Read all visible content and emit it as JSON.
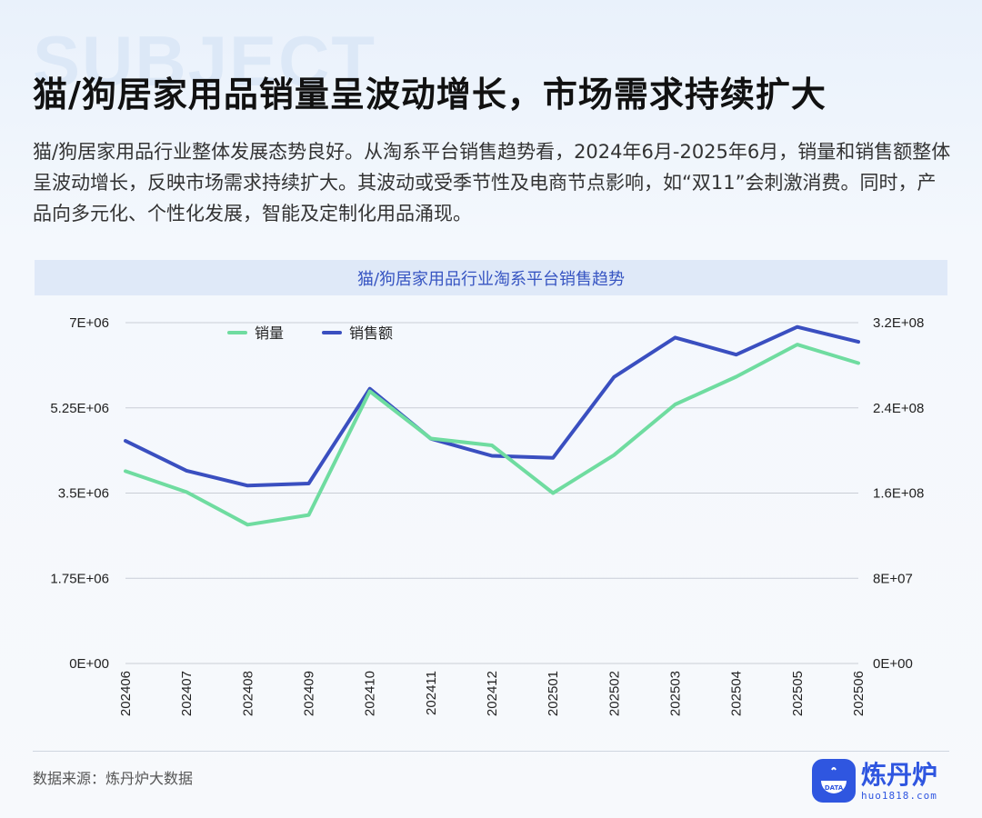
{
  "background_word": "SUBJECT",
  "headline": "猫/狗居家用品销量呈波动增长，市场需求持续扩大",
  "paragraph": "猫/狗居家用品行业整体发展态势良好。从淘系平台销售趋势看，2024年6月-2025年6月，销量和销售额整体呈波动增长，反映市场需求持续扩大。其波动或受季节性及电商节点影响，如“双11”会刺激消费。同时，产品向多元化、个性化发展，智能及定制化用品涌现。",
  "source_text": "数据来源：炼丹炉大数据",
  "logo": {
    "name": "炼丹炉",
    "domain": "huo1818.com",
    "badge": "DATA"
  },
  "colors": {
    "volume": "#6fdca0",
    "revenue": "#3a4fc0",
    "banner_bg": "#dfe9f8",
    "brand": "#2f56e0"
  },
  "chart_data": {
    "type": "line",
    "title": "猫/狗居家用品行业淘系平台销售趋势",
    "categories": [
      "202406",
      "202407",
      "202408",
      "202409",
      "202410",
      "202411",
      "202412",
      "202501",
      "202502",
      "202503",
      "202504",
      "202505",
      "202506"
    ],
    "series": [
      {
        "name": "销量",
        "axis": "left",
        "color": "#6fdca0",
        "values": [
          3950000,
          3520000,
          2850000,
          3050000,
          5590000,
          4620000,
          4480000,
          3500000,
          4280000,
          5320000,
          5890000,
          6550000,
          6170000
        ]
      },
      {
        "name": "销售额",
        "axis": "right",
        "color": "#3a4fc0",
        "values": [
          209000000,
          181000000,
          167000000,
          169000000,
          258000000,
          211000000,
          195000000,
          193000000,
          269000000,
          306000000,
          290000000,
          316000000,
          302000000
        ]
      }
    ],
    "y_left": {
      "ylim": [
        0,
        7000000
      ],
      "ticks": [
        "0E+00",
        "1.75E+06",
        "3.5E+06",
        "5.25E+06",
        "7E+06"
      ]
    },
    "y_right": {
      "ylim": [
        0,
        320000000
      ],
      "ticks": [
        "0E+00",
        "8E+07",
        "1.6E+08",
        "2.4E+08",
        "3.2E+08"
      ]
    },
    "grid": true,
    "legend_position": "top-left"
  }
}
